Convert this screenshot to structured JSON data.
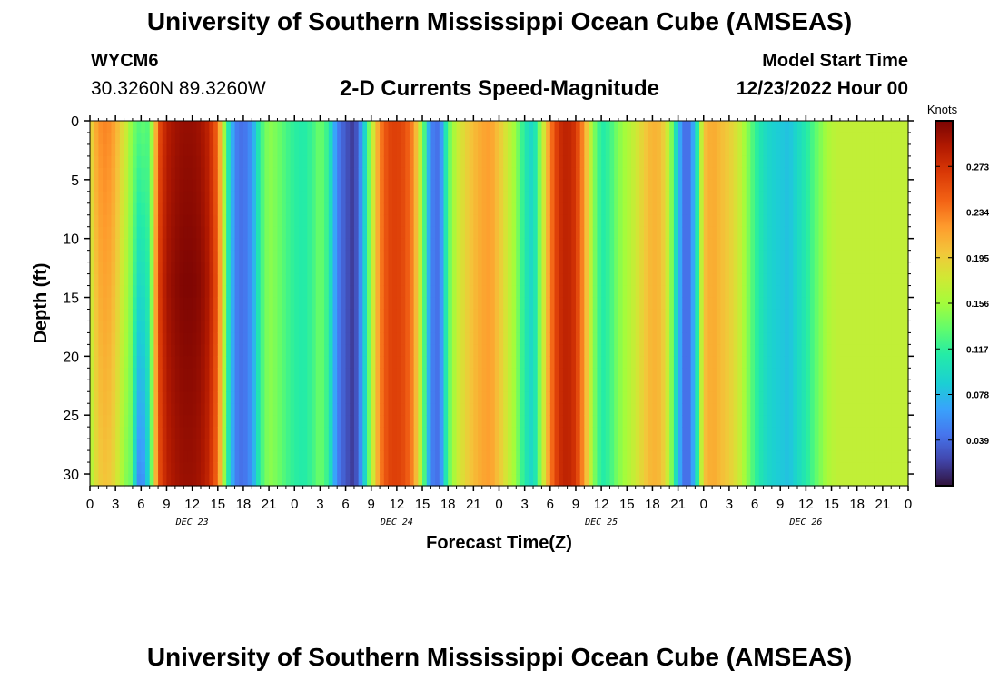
{
  "header": {
    "title": "University of Southern Mississippi Ocean Cube (AMSEAS)",
    "station_id": "WYCM6",
    "coordinates": "30.3260N  89.3260W",
    "subtitle": "2-D Currents Speed-Magnitude",
    "model_start_label": "Model Start Time",
    "model_start_value": "12/23/2022 Hour 00"
  },
  "footer": {
    "title": "University of Southern Mississippi Ocean Cube (AMSEAS)"
  },
  "chart_data": {
    "type": "heatmap",
    "title": "2-D Currents Speed-Magnitude",
    "xlabel": "Forecast Time(Z)",
    "ylabel": "Depth (ft)",
    "x_range_hours": [
      0,
      96
    ],
    "ylim": [
      0,
      31
    ],
    "y_ticks": [
      0,
      5,
      10,
      15,
      20,
      25,
      30
    ],
    "x_tick_hours": [
      0,
      3,
      6,
      9,
      12,
      15,
      18,
      21,
      24,
      27,
      30,
      33,
      36,
      39,
      42,
      45,
      48,
      51,
      54,
      57,
      60,
      63,
      66,
      69,
      72,
      75,
      78,
      81,
      84,
      87,
      90,
      93,
      96
    ],
    "x_tick_labels": [
      "0",
      "3",
      "6",
      "9",
      "12",
      "15",
      "18",
      "21",
      "0",
      "3",
      "6",
      "9",
      "12",
      "15",
      "18",
      "21",
      "0",
      "3",
      "6",
      "9",
      "12",
      "15",
      "18",
      "21",
      "0",
      "3",
      "6",
      "9",
      "12",
      "15",
      "18",
      "21",
      "0"
    ],
    "day_labels": [
      {
        "hour": 12,
        "text": "DEC 23"
      },
      {
        "hour": 36,
        "text": "DEC 24"
      },
      {
        "hour": 60,
        "text": "DEC 25"
      },
      {
        "hour": 84,
        "text": "DEC 26"
      }
    ],
    "colorbar": {
      "unit": "Knots",
      "min": 0.0,
      "max": 0.312,
      "ticks": [
        0.039,
        0.078,
        0.117,
        0.156,
        0.195,
        0.234,
        0.273
      ],
      "tick_labels": [
        "0.039",
        "0.078",
        "0.117",
        "0.156",
        "0.195",
        "0.234",
        "0.273"
      ]
    },
    "speed_profile": {
      "hours": [
        0,
        1,
        2,
        3,
        4,
        4.5,
        5,
        5.7,
        6.5,
        7.2,
        8,
        9,
        10,
        11,
        12,
        13,
        14,
        15,
        15.5,
        16.2,
        17,
        18,
        19,
        20,
        21,
        22,
        23,
        24,
        25,
        26,
        27,
        28,
        29,
        30,
        31,
        32,
        33,
        34,
        35,
        36,
        37,
        38,
        39,
        40,
        41,
        42,
        43,
        44,
        45,
        46,
        47,
        48,
        49,
        50,
        51,
        52,
        53,
        54,
        55,
        56,
        57,
        58,
        59,
        60,
        61,
        62,
        63,
        64,
        65,
        66,
        67,
        68,
        69,
        70,
        71,
        72,
        73,
        74,
        75,
        76,
        77,
        78,
        79,
        80,
        81,
        82,
        83,
        84,
        85,
        86,
        87,
        88,
        89,
        90,
        91,
        92,
        93,
        94,
        95,
        96
      ],
      "knots": [
        0.175,
        0.215,
        0.222,
        0.205,
        0.17,
        0.16,
        0.115,
        0.055,
        0.06,
        0.13,
        0.262,
        0.295,
        0.305,
        0.31,
        0.31,
        0.305,
        0.29,
        0.25,
        0.19,
        0.11,
        0.05,
        0.04,
        0.06,
        0.12,
        0.15,
        0.14,
        0.125,
        0.115,
        0.11,
        0.12,
        0.14,
        0.115,
        0.05,
        0.03,
        0.015,
        0.07,
        0.16,
        0.23,
        0.26,
        0.265,
        0.255,
        0.225,
        0.15,
        0.05,
        0.04,
        0.13,
        0.17,
        0.19,
        0.205,
        0.215,
        0.22,
        0.2,
        0.175,
        0.15,
        0.11,
        0.09,
        0.16,
        0.23,
        0.275,
        0.285,
        0.27,
        0.22,
        0.15,
        0.11,
        0.12,
        0.145,
        0.16,
        0.175,
        0.195,
        0.21,
        0.205,
        0.165,
        0.08,
        0.03,
        0.08,
        0.2,
        0.215,
        0.205,
        0.195,
        0.18,
        0.15,
        0.12,
        0.1,
        0.09,
        0.085,
        0.08,
        0.095,
        0.11,
        0.13,
        0.15,
        0.165,
        0.17,
        0.17,
        0.17,
        0.17,
        0.17,
        0.17,
        0.17,
        0.17,
        0.17
      ]
    }
  }
}
